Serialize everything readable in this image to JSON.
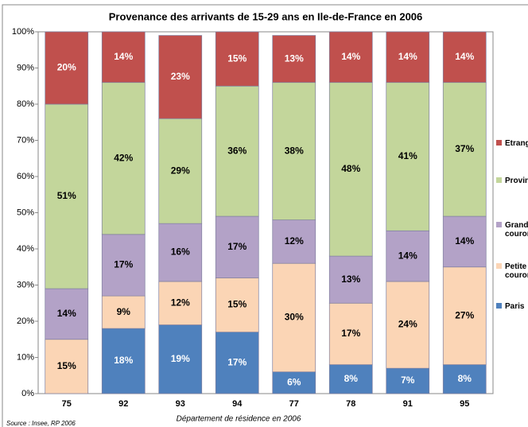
{
  "chart_data": {
    "type": "stacked_bar",
    "title": "Provenance des arrivants de 15-29 ans en Ile-de-France en 2006",
    "x_label": "Département  de résidence  en 2006",
    "source": "Source : Insee, RP 2006",
    "categories": [
      "75",
      "92",
      "93",
      "94",
      "77",
      "78",
      "91",
      "95"
    ],
    "series": [
      {
        "name": "Paris",
        "color": "#4f81bd",
        "label_color": "#ffffff",
        "values": [
          0,
          18,
          19,
          17,
          6,
          8,
          7,
          8
        ],
        "value_labels": [
          null,
          "18%",
          "19%",
          "17%",
          "6%",
          "8%",
          "7%",
          "8%"
        ]
      },
      {
        "name": "Petite couronne",
        "color": "#fbd5b5",
        "label_color": "#000000",
        "values": [
          15,
          9,
          12,
          15,
          30,
          17,
          24,
          27
        ],
        "value_labels": [
          "15%",
          "9%",
          "12%",
          "15%",
          "30%",
          "17%",
          "24%",
          "27%"
        ]
      },
      {
        "name": "Grande couronne",
        "color": "#b3a2c7",
        "label_color": "#000000",
        "values": [
          14,
          17,
          16,
          17,
          12,
          13,
          14,
          14
        ],
        "value_labels": [
          "14%",
          "17%",
          "16%",
          "17%",
          "12%",
          "13%",
          "14%",
          "14%"
        ]
      },
      {
        "name": "Province",
        "color": "#c3d69b",
        "label_color": "#000000",
        "values": [
          51,
          42,
          29,
          36,
          38,
          48,
          41,
          37
        ],
        "value_labels": [
          "51%",
          "42%",
          "29%",
          "36%",
          "38%",
          "48%",
          "41%",
          "37%"
        ]
      },
      {
        "name": "Etranger",
        "color": "#c0504d",
        "label_color": "#ffffff",
        "values": [
          20,
          14,
          23,
          15,
          13,
          14,
          14,
          14
        ],
        "value_labels": [
          "20%",
          "14%",
          "23%",
          "15%",
          "13%",
          "14%",
          "14%",
          "14%"
        ]
      }
    ],
    "ylim": [
      0,
      100
    ],
    "yticks": [
      {
        "value": 0,
        "label": "0%"
      },
      {
        "value": 10,
        "label": "10%"
      },
      {
        "value": 20,
        "label": "20%"
      },
      {
        "value": 30,
        "label": "30%"
      },
      {
        "value": 40,
        "label": "40%"
      },
      {
        "value": 50,
        "label": "50%"
      },
      {
        "value": 60,
        "label": "60%"
      },
      {
        "value": 70,
        "label": "70%"
      },
      {
        "value": 80,
        "label": "80%"
      },
      {
        "value": 90,
        "label": "90%"
      },
      {
        "value": 100,
        "label": "100%"
      }
    ],
    "grid": false,
    "legend": "right"
  }
}
